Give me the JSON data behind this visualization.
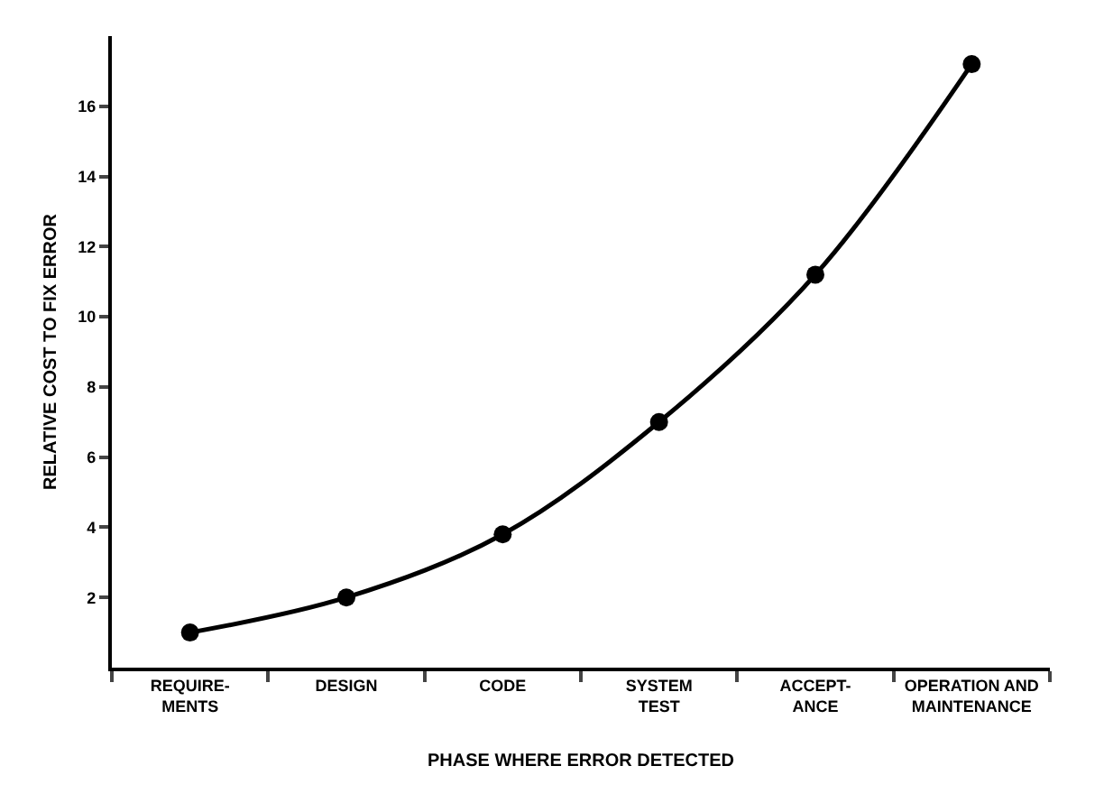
{
  "chart_data": {
    "type": "line",
    "xlabel": "PHASE WHERE ERROR DETECTED",
    "ylabel": "RELATIVE COST TO FIX ERROR",
    "categories": [
      "REQUIRE-\nMENTS",
      "DESIGN",
      "CODE",
      "SYSTEM\nTEST",
      "ACCEPT-\nANCE",
      "OPERATION AND\nMAINTENANCE"
    ],
    "series": [
      {
        "color": "#000000",
        "values": [
          1,
          2,
          3.8,
          7,
          11.2,
          17.2
        ]
      }
    ],
    "ylim": [
      0,
      18
    ],
    "yticks": [
      2,
      4,
      6,
      8,
      10,
      12,
      14,
      16
    ],
    "grid": false,
    "marker": "circle",
    "line_style": "solid"
  }
}
